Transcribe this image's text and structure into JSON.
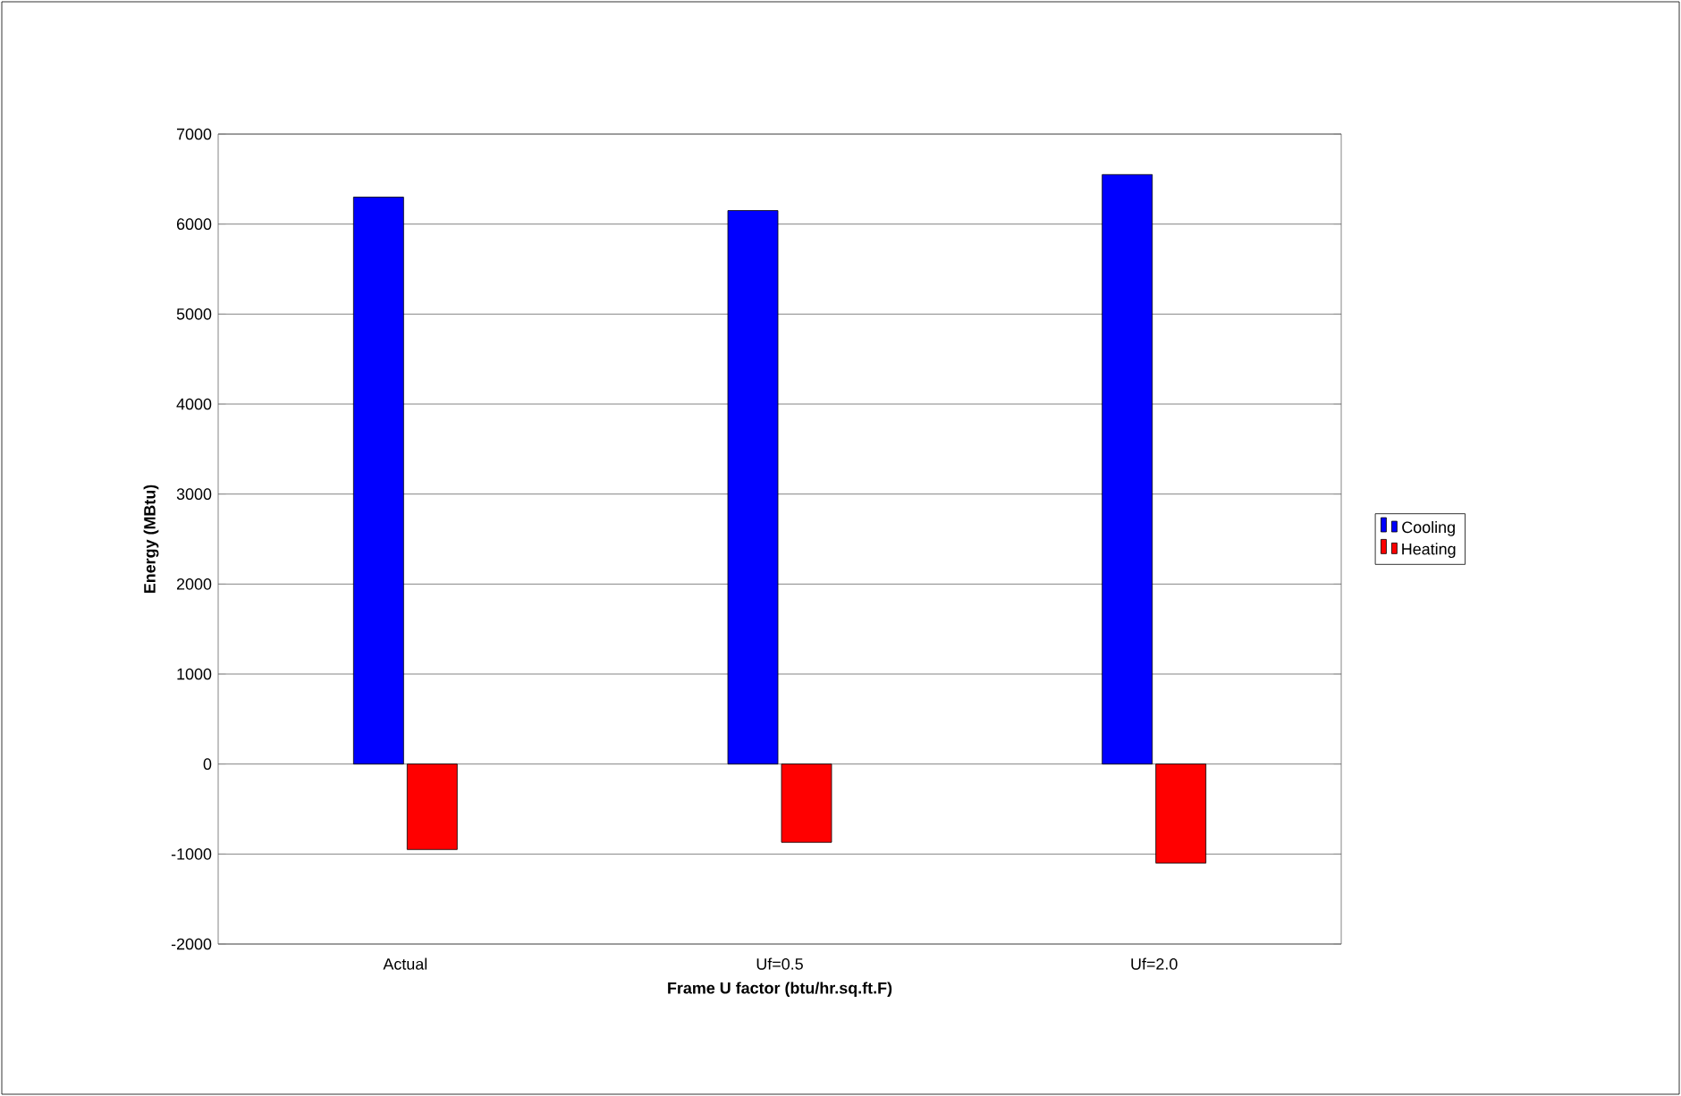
{
  "chart_data": {
    "type": "bar",
    "xlabel": "Frame U factor (btu/hr.sq.ft.F)",
    "ylabel": "Energy (MBtu)",
    "categories": [
      "Actual",
      "Uf=0.5",
      "Uf=2.0"
    ],
    "series": [
      {
        "name": "Cooling",
        "color": "#0000ff",
        "values": [
          6300,
          6150,
          6550
        ]
      },
      {
        "name": "Heating",
        "color": "#ff0000",
        "values": [
          -950,
          -870,
          -1100
        ]
      }
    ],
    "ylim": [
      -2000,
      7000
    ],
    "yticks": [
      -2000,
      -1000,
      0,
      1000,
      2000,
      3000,
      4000,
      5000,
      6000,
      7000
    ],
    "grid": "y",
    "legend": "right"
  }
}
